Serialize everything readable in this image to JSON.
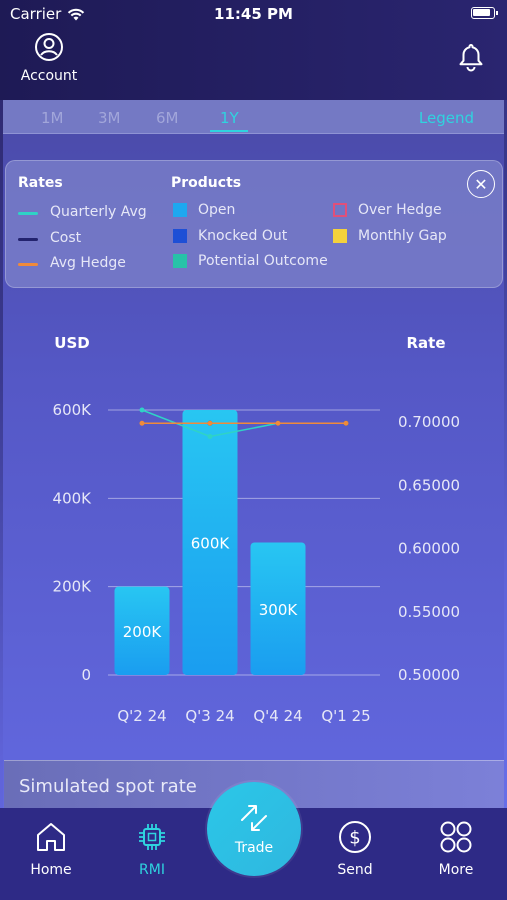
{
  "status_bar": {
    "carrier": "Carrier",
    "time": "11:45 PM"
  },
  "header": {
    "account_label": "Account"
  },
  "tabs": {
    "items": [
      {
        "label": "1M",
        "active": false
      },
      {
        "label": "3M",
        "active": false
      },
      {
        "label": "6M",
        "active": false
      },
      {
        "label": "1Y",
        "active": true
      }
    ],
    "legend_link": "Legend"
  },
  "legend": {
    "rates_title": "Rates",
    "rates": [
      {
        "label": "Quarterly Avg",
        "color": "#2fd3c6"
      },
      {
        "label": "Cost",
        "color": "#23236e"
      },
      {
        "label": "Avg Hedge",
        "color": "#f08a3a"
      }
    ],
    "products_title": "Products",
    "products": [
      {
        "label": "Open",
        "color": "#1ea8f0"
      },
      {
        "label": "Knocked Out",
        "color": "#1e4fd6"
      },
      {
        "label": "Potential Outcome",
        "color": "#27c2a8"
      },
      {
        "label": "Over Hedge",
        "color": "#e0507a"
      },
      {
        "label": "Monthly Gap",
        "color": "#f4d23c"
      }
    ]
  },
  "chart_data": {
    "type": "bar",
    "left_axis_title": "USD",
    "right_axis_title": "Rate",
    "categories": [
      "Q'2 24",
      "Q'3 24",
      "Q'4 24",
      "Q'1 25"
    ],
    "left_ticks": [
      "600K",
      "400K",
      "200K",
      "0"
    ],
    "right_ticks": [
      "0.70000",
      "0.65000",
      "0.60000",
      "0.55000",
      "0.50000"
    ],
    "ylim": [
      0,
      600000
    ],
    "rate_lim": [
      0.5,
      0.7
    ],
    "bars": {
      "name": "Open",
      "color": "#1ea8f0",
      "values": [
        200000,
        600000,
        300000,
        null
      ],
      "labels": [
        "200K",
        "600K",
        "300K",
        ""
      ]
    },
    "series": [
      {
        "name": "Quarterly Avg",
        "color": "#2fd3c6",
        "values": [
          0.7,
          0.68,
          0.69,
          0.69
        ]
      },
      {
        "name": "Cost",
        "color": "#23236e",
        "values": [
          null,
          0.69,
          0.69,
          0.69
        ]
      },
      {
        "name": "Avg Hedge",
        "color": "#f08a3a",
        "values": [
          0.69,
          0.69,
          0.69,
          0.69
        ]
      }
    ]
  },
  "simulated": {
    "title": "Simulated spot rate"
  },
  "nav": {
    "home": "Home",
    "rmi": "RMI",
    "trade": "Trade",
    "send": "Send",
    "more": "More"
  }
}
